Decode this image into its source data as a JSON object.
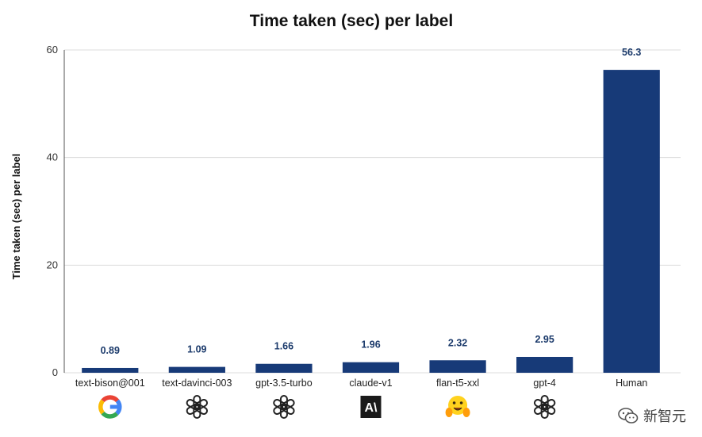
{
  "chart_data": {
    "type": "bar",
    "title": "Time taken (sec) per label",
    "xlabel": "",
    "ylabel": "Time taken (sec) per label",
    "ylim": [
      0,
      60
    ],
    "yticks": [
      0,
      20,
      40,
      60
    ],
    "grid": true,
    "categories": [
      "text-bison@001",
      "text-davinci-003",
      "gpt-3.5-turbo",
      "claude-v1",
      "flan-t5-xxl",
      "gpt-4",
      "Human"
    ],
    "values": [
      0.89,
      1.09,
      1.66,
      1.96,
      2.32,
      2.95,
      56.3
    ],
    "data_labels": [
      "0.89",
      "1.09",
      "1.66",
      "1.96",
      "2.32",
      "2.95",
      "56.3"
    ],
    "bar_color": "#173a78",
    "category_icons": [
      "google-icon",
      "openai-icon",
      "openai-icon",
      "anthropic-icon",
      "huggingface-icon",
      "openai-icon",
      ""
    ]
  },
  "watermark": {
    "text": "新智元",
    "icon": "wechat-icon"
  }
}
